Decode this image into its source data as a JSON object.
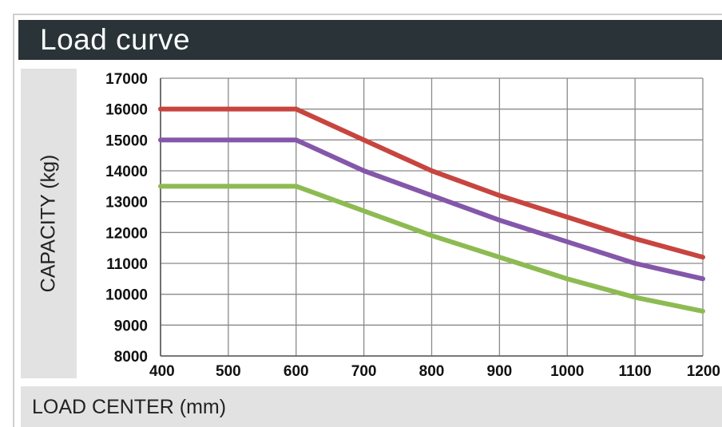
{
  "chart_data": {
    "type": "line",
    "title": "Load curve",
    "xlabel": "LOAD CENTER (mm)",
    "ylabel": "CAPACITY (kg)",
    "x": [
      400,
      500,
      600,
      700,
      800,
      900,
      1000,
      1100,
      1200
    ],
    "xlim": [
      400,
      1200
    ],
    "ylim": [
      8000,
      17000
    ],
    "xticks": [
      "400",
      "500",
      "600",
      "700",
      "800",
      "900",
      "1000",
      "1100",
      "1200"
    ],
    "yticks": [
      "8000",
      "9000",
      "10000",
      "11000",
      "12000",
      "13000",
      "14000",
      "15000",
      "16000",
      "17000"
    ],
    "grid": true,
    "series": [
      {
        "color": "#c8453f",
        "values": [
          16000,
          16000,
          16000,
          15000,
          14000,
          13200,
          12500,
          11800,
          11200
        ]
      },
      {
        "color": "#8457aa",
        "values": [
          15000,
          15000,
          15000,
          14000,
          13200,
          12400,
          11700,
          11000,
          10500
        ]
      },
      {
        "color": "#8dbb52",
        "values": [
          13500,
          13500,
          13500,
          12700,
          11900,
          11200,
          10500,
          9900,
          9450
        ]
      }
    ]
  }
}
